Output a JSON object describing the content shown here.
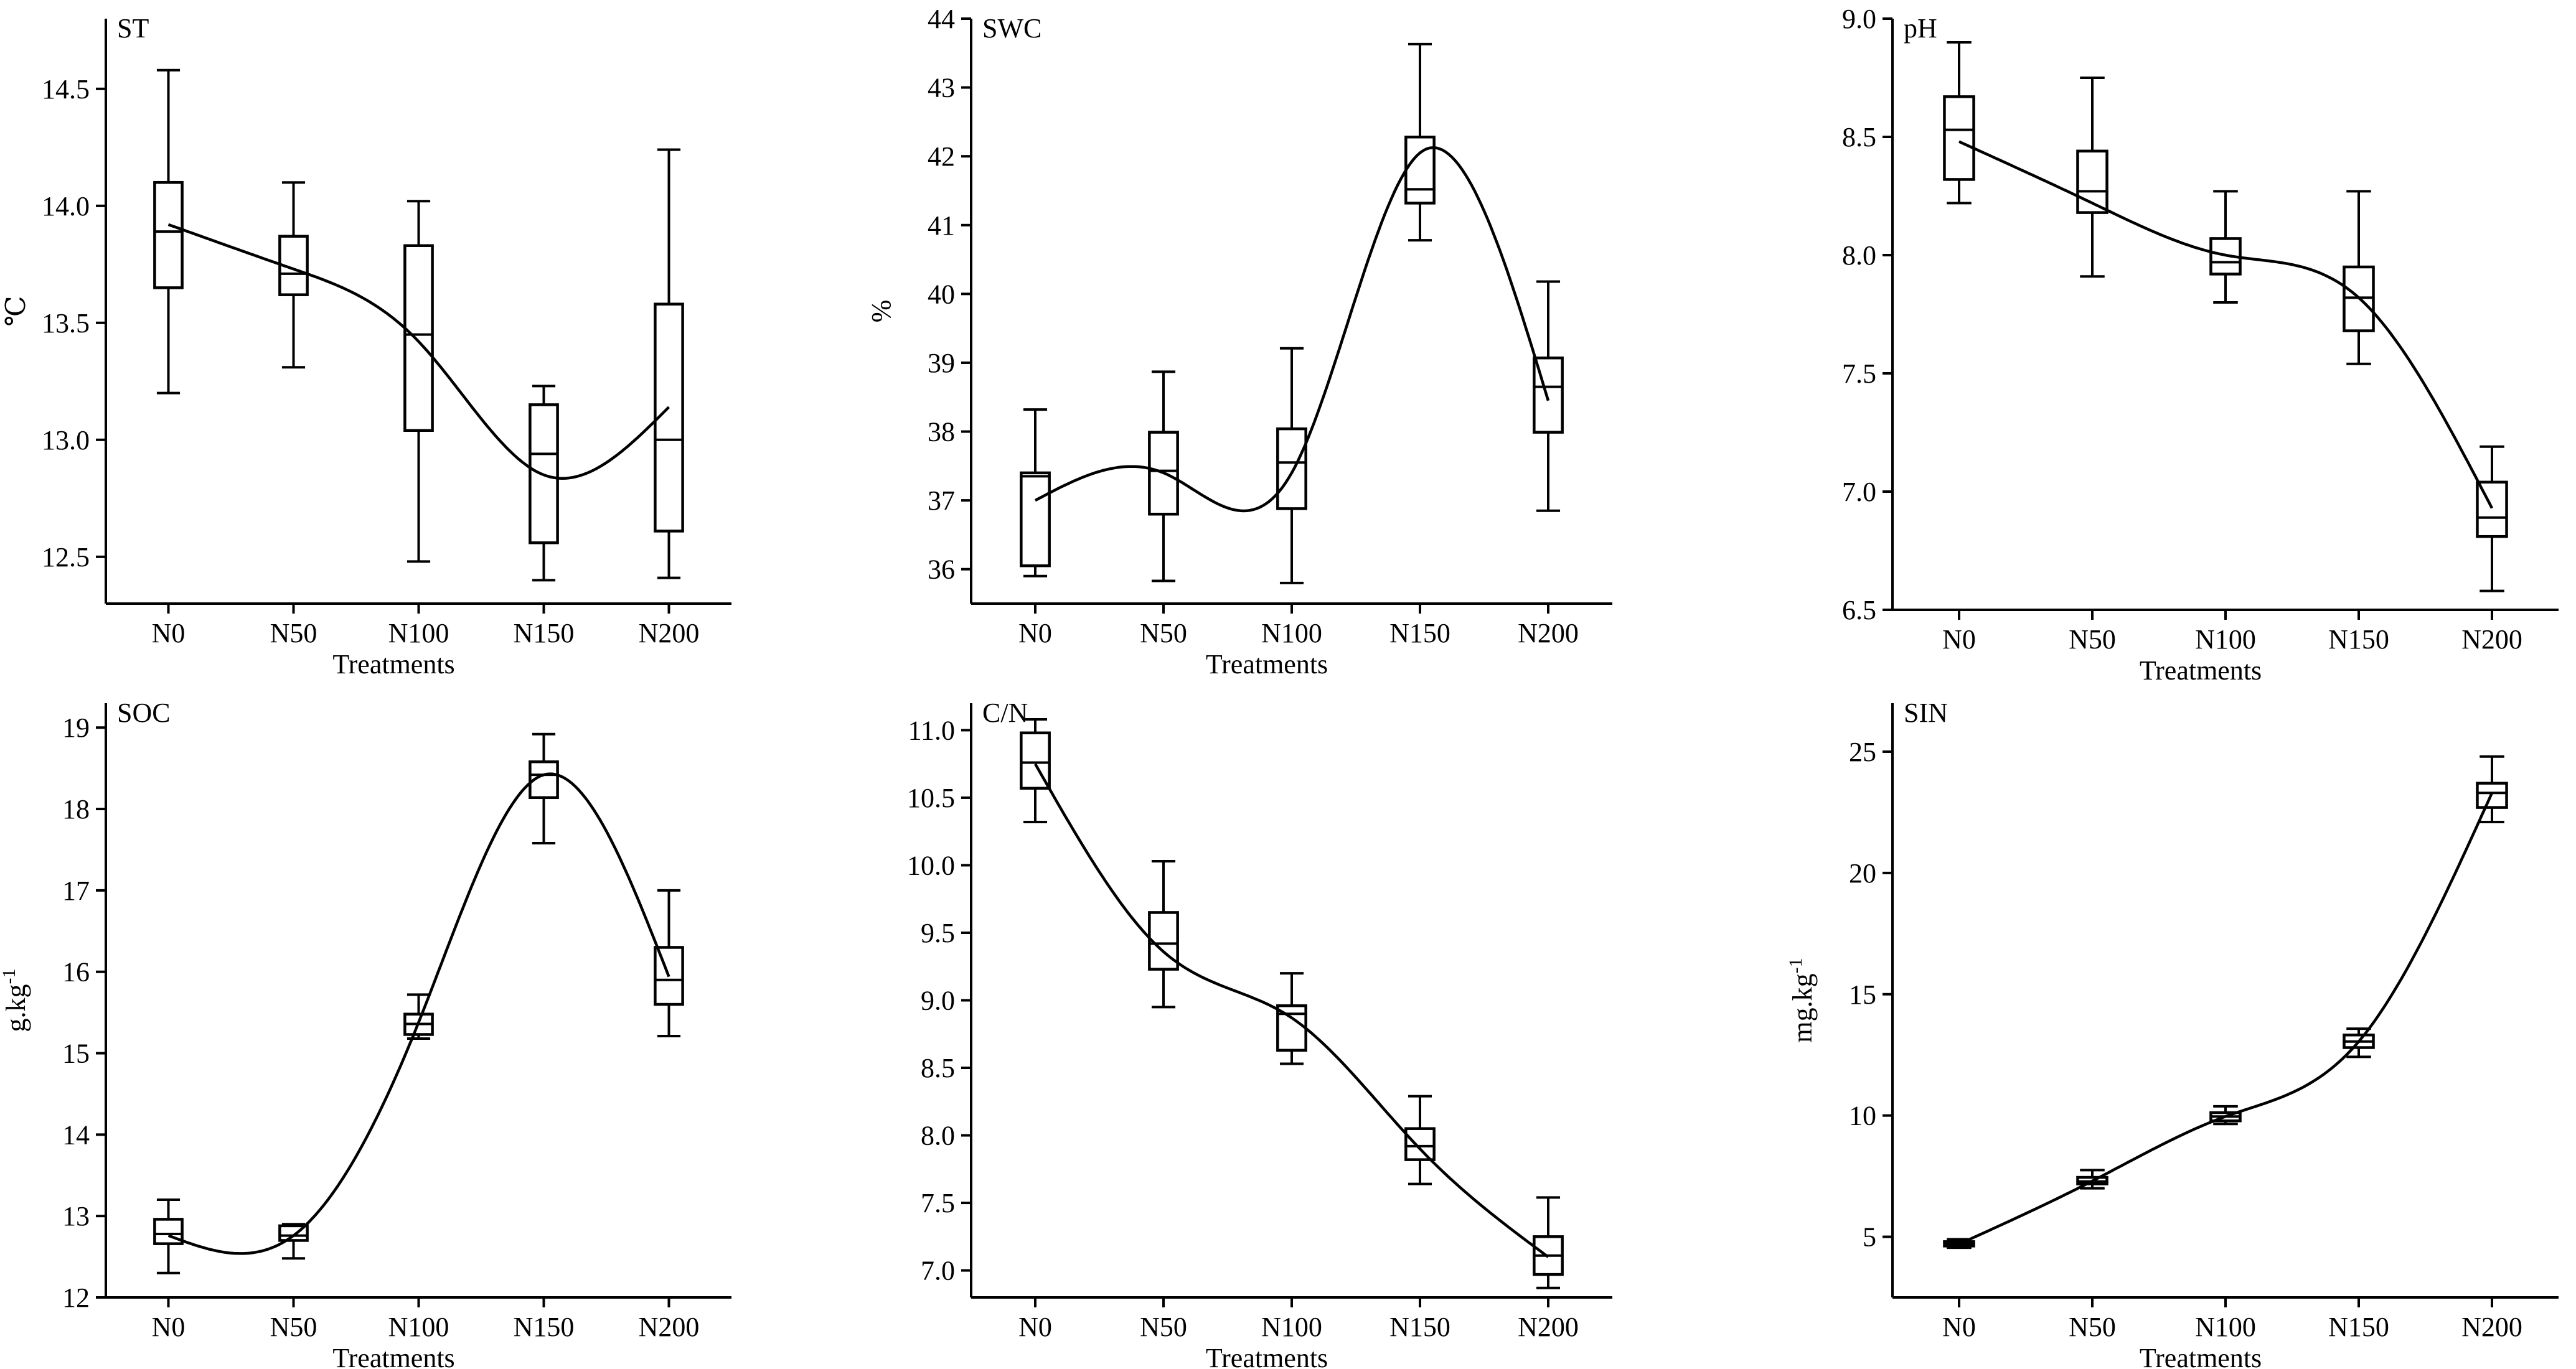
{
  "chart_data": [
    {
      "type": "box",
      "panel_label": "ST",
      "xlabel": "Treatments",
      "ylabel": "℃",
      "ylim": [
        12.3,
        14.8
      ],
      "yticks": [
        "12.5",
        "13.0",
        "13.5",
        "14.0",
        "14.5"
      ],
      "categories": [
        "N0",
        "N50",
        "N100",
        "N150",
        "N200"
      ],
      "boxes": [
        {
          "min": 13.2,
          "q1": 13.65,
          "median": 13.89,
          "q3": 14.1,
          "max": 14.58
        },
        {
          "min": 13.31,
          "q1": 13.62,
          "median": 13.71,
          "q3": 13.87,
          "max": 14.1
        },
        {
          "min": 12.48,
          "q1": 13.04,
          "median": 13.45,
          "q3": 13.83,
          "max": 14.02
        },
        {
          "min": 12.4,
          "q1": 12.56,
          "median": 12.94,
          "q3": 13.15,
          "max": 13.23
        },
        {
          "min": 12.41,
          "q1": 12.61,
          "median": 13.0,
          "q3": 13.58,
          "max": 14.24
        }
      ],
      "trend": [
        13.92,
        13.73,
        13.42,
        12.85,
        13.14
      ]
    },
    {
      "type": "box",
      "panel_label": "SWC",
      "xlabel": "Treatments",
      "ylabel": "%",
      "ylim": [
        35.5,
        44.0
      ],
      "yticks": [
        "36",
        "37",
        "38",
        "39",
        "40",
        "41",
        "42",
        "43",
        "44"
      ],
      "categories": [
        "N0",
        "N50",
        "N100",
        "N150",
        "N200"
      ],
      "boxes": [
        {
          "min": 35.9,
          "q1": 36.05,
          "median": 37.35,
          "q3": 37.4,
          "max": 38.32
        },
        {
          "min": 35.83,
          "q1": 36.8,
          "median": 37.43,
          "q3": 37.99,
          "max": 38.87
        },
        {
          "min": 35.8,
          "q1": 36.88,
          "median": 37.55,
          "q3": 38.04,
          "max": 39.21
        },
        {
          "min": 40.78,
          "q1": 41.32,
          "median": 41.52,
          "q3": 42.28,
          "max": 43.63
        },
        {
          "min": 36.85,
          "q1": 37.99,
          "median": 38.65,
          "q3": 39.07,
          "max": 40.18
        }
      ],
      "trend": [
        37.0,
        37.4,
        37.4,
        42.05,
        38.45
      ]
    },
    {
      "type": "box",
      "panel_label": "pH",
      "xlabel": "Treatments",
      "ylabel": "",
      "ylim": [
        6.5,
        9.0
      ],
      "yticks": [
        "6.5",
        "7.0",
        "7.5",
        "8.0",
        "8.5",
        "9.0"
      ],
      "categories": [
        "N0",
        "N50",
        "N100",
        "N150",
        "N200"
      ],
      "boxes": [
        {
          "min": 8.22,
          "q1": 8.32,
          "median": 8.53,
          "q3": 8.67,
          "max": 8.9
        },
        {
          "min": 7.91,
          "q1": 8.18,
          "median": 8.27,
          "q3": 8.44,
          "max": 8.75
        },
        {
          "min": 7.8,
          "q1": 7.92,
          "median": 7.97,
          "q3": 8.07,
          "max": 8.27
        },
        {
          "min": 7.54,
          "q1": 7.68,
          "median": 7.82,
          "q3": 7.95,
          "max": 8.27
        },
        {
          "min": 6.58,
          "q1": 6.81,
          "median": 6.89,
          "q3": 7.04,
          "max": 7.19
        }
      ],
      "trend": [
        8.48,
        8.22,
        8.0,
        7.82,
        6.93
      ]
    },
    {
      "type": "box",
      "panel_label": "SOC",
      "xlabel": "Treatments",
      "ylabel": "g.kg",
      "ylabel_sup": "-1",
      "ylim": [
        12.0,
        19.3
      ],
      "yticks": [
        "12",
        "13",
        "14",
        "15",
        "16",
        "17",
        "18",
        "19"
      ],
      "categories": [
        "N0",
        "N50",
        "N100",
        "N150",
        "N200"
      ],
      "boxes": [
        {
          "min": 12.3,
          "q1": 12.66,
          "median": 12.78,
          "q3": 12.96,
          "max": 13.2
        },
        {
          "min": 12.48,
          "q1": 12.7,
          "median": 12.76,
          "q3": 12.88,
          "max": 12.9
        },
        {
          "min": 15.18,
          "q1": 15.23,
          "median": 15.36,
          "q3": 15.48,
          "max": 15.72
        },
        {
          "min": 17.58,
          "q1": 18.14,
          "median": 18.42,
          "q3": 18.58,
          "max": 18.92
        },
        {
          "min": 15.21,
          "q1": 15.6,
          "median": 15.9,
          "q3": 16.3,
          "max": 17.0
        }
      ],
      "trend": [
        12.76,
        12.76,
        15.38,
        18.42,
        15.94
      ]
    },
    {
      "type": "box",
      "panel_label": "C/N",
      "xlabel": "Treatments",
      "ylabel": "",
      "ylim": [
        6.8,
        11.2
      ],
      "yticks": [
        "7.0",
        "7.5",
        "8.0",
        "8.5",
        "9.0",
        "9.5",
        "10.0",
        "10.5",
        "11.0"
      ],
      "categories": [
        "N0",
        "N50",
        "N100",
        "N150",
        "N200"
      ],
      "boxes": [
        {
          "min": 10.32,
          "q1": 10.57,
          "median": 10.76,
          "q3": 10.98,
          "max": 11.08
        },
        {
          "min": 8.95,
          "q1": 9.23,
          "median": 9.42,
          "q3": 9.65,
          "max": 10.03
        },
        {
          "min": 8.53,
          "q1": 8.63,
          "median": 8.9,
          "q3": 8.96,
          "max": 9.2
        },
        {
          "min": 7.64,
          "q1": 7.82,
          "median": 7.92,
          "q3": 8.05,
          "max": 8.29
        },
        {
          "min": 6.87,
          "q1": 6.97,
          "median": 7.11,
          "q3": 7.25,
          "max": 7.54
        }
      ],
      "trend": [
        10.75,
        9.36,
        8.87,
        7.9,
        7.1
      ]
    },
    {
      "type": "box",
      "panel_label": "SIN",
      "xlabel": "Treatments",
      "ylabel": "mg.kg",
      "ylabel_sup": "-1",
      "ylim": [
        2.5,
        27.0
      ],
      "yticks": [
        "5",
        "10",
        "15",
        "20",
        "25"
      ],
      "categories": [
        "N0",
        "N50",
        "N100",
        "N150",
        "N200"
      ],
      "boxes": [
        {
          "min": 4.55,
          "q1": 4.62,
          "median": 4.7,
          "q3": 4.8,
          "max": 4.9
        },
        {
          "min": 7.0,
          "q1": 7.18,
          "median": 7.28,
          "q3": 7.45,
          "max": 7.75
        },
        {
          "min": 9.65,
          "q1": 9.78,
          "median": 9.96,
          "q3": 10.12,
          "max": 10.38
        },
        {
          "min": 12.42,
          "q1": 12.8,
          "median": 13.05,
          "q3": 13.32,
          "max": 13.58
        },
        {
          "min": 22.1,
          "q1": 22.7,
          "median": 23.3,
          "q3": 23.7,
          "max": 24.8
        }
      ],
      "trend": [
        4.7,
        7.3,
        9.96,
        13.05,
        23.3
      ]
    }
  ]
}
